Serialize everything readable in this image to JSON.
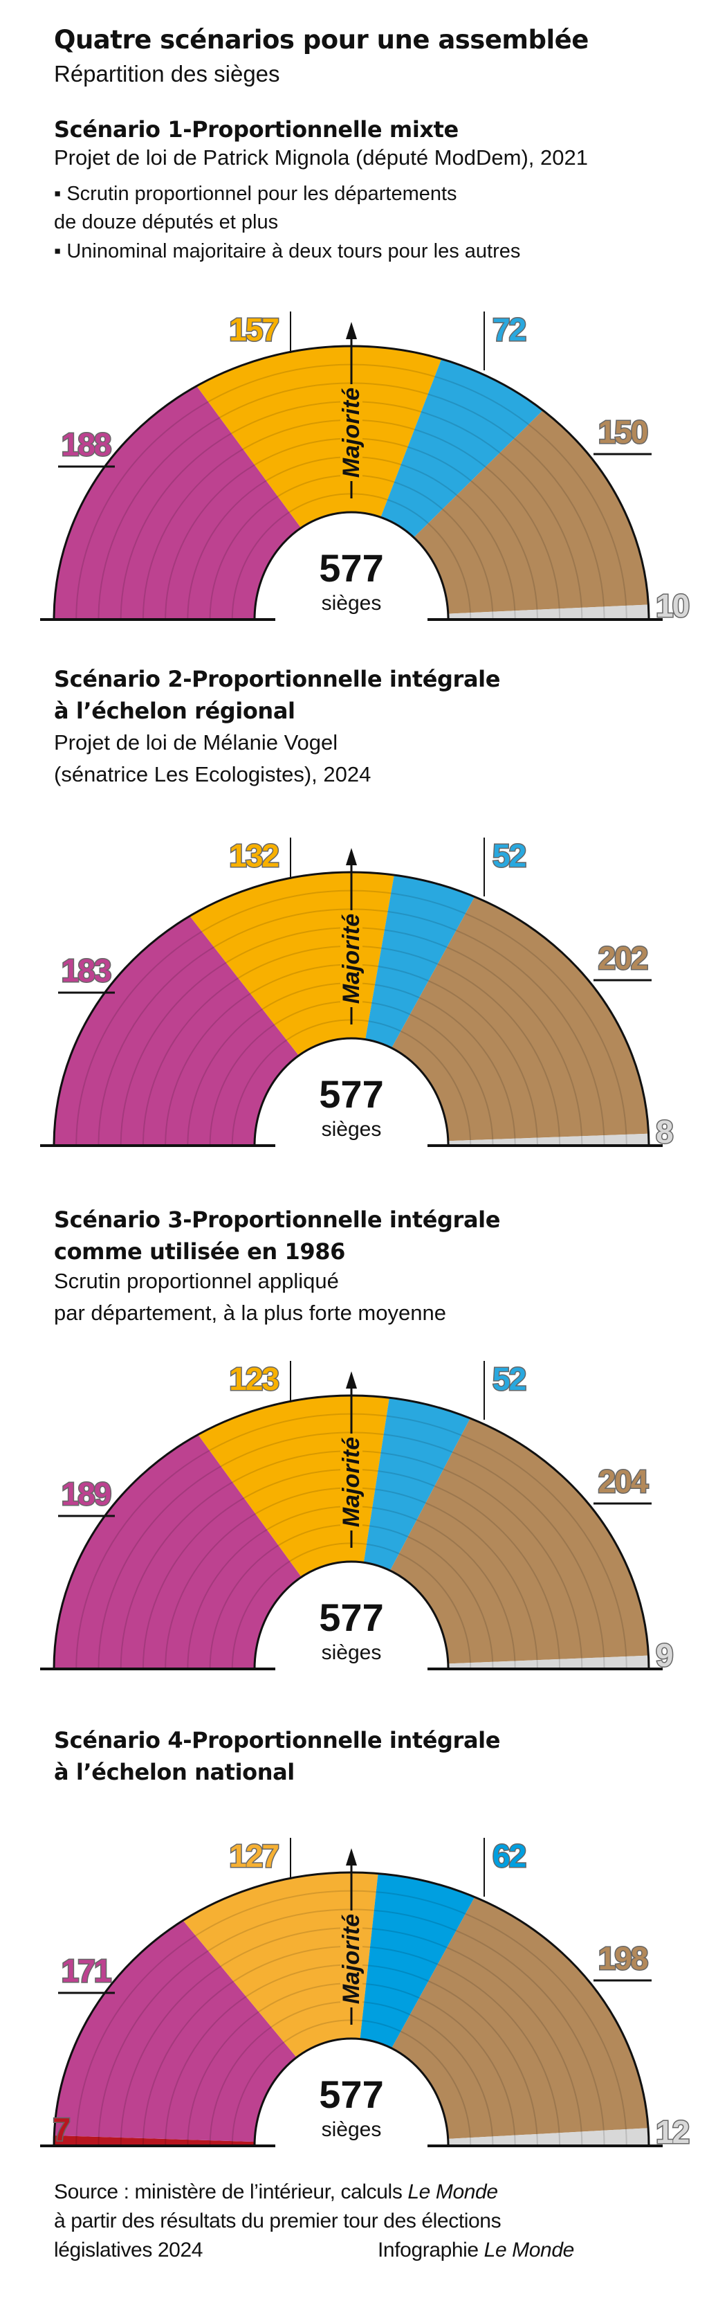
{
  "title": "Quatre scénarios pour une assemblée",
  "subtitle": "Répartition des sièges",
  "colors": {
    "purple": "#bd4290",
    "yellow": "#f8b000",
    "yellow_light": "#f6b033",
    "blue": "#29a8df",
    "blue_strong": "#009fe0",
    "brown": "#b3895a",
    "grey": "#d8d8d8",
    "red": "#b8161f"
  },
  "center_total": "577",
  "center_unit": "sièges",
  "majority_label": "Majorité",
  "scenarios": [
    {
      "heading": [
        "Scénario 1-Proportionnelle mixte"
      ],
      "description": [
        "Projet de loi de Patrick Mignola (député ModDem), 2021"
      ],
      "bullets": [
        "▪ Scrutin proportionnel pour les départements",
        "de douze députés et plus",
        "▪ Uninominal majoritaire à deux tours pour les autres"
      ]
    },
    {
      "heading": [
        "Scénario 2-Proportionnelle intégrale",
        "à l’échelon régional"
      ],
      "description": [
        "Projet de loi de Mélanie Vogel",
        "(sénatrice Les Ecologistes), 2024"
      ],
      "bullets": []
    },
    {
      "heading": [
        "Scénario 3-Proportionnelle intégrale",
        " comme utilisée en 1986"
      ],
      "description": [
        "Scrutin proportionnel appliqué",
        "par département, à la plus forte moyenne"
      ],
      "bullets": []
    },
    {
      "heading": [
        "Scénario 4-Proportionnelle intégrale",
        "à l’échelon national"
      ],
      "description": [],
      "bullets": []
    }
  ],
  "source": {
    "line1": "Source : ministère de l’intérieur, calculs",
    "line1_italic": "Le Monde",
    "line2": "à partir des résultats du premier tour des élections",
    "line3": "législatives 2024",
    "credit": "Infographie",
    "credit_italic": "Le Monde"
  },
  "chart_data": [
    {
      "type": "pie",
      "title": "Scénario 1-Proportionnelle mixte",
      "total": 577,
      "series": [
        {
          "name": "purple",
          "value": 188
        },
        {
          "name": "yellow",
          "value": 157
        },
        {
          "name": "blue",
          "value": 72
        },
        {
          "name": "brown",
          "value": 150
        },
        {
          "name": "grey",
          "value": 10
        }
      ]
    },
    {
      "type": "pie",
      "title": "Scénario 2-Proportionnelle intégrale à l’échelon régional",
      "total": 577,
      "series": [
        {
          "name": "purple",
          "value": 183
        },
        {
          "name": "yellow",
          "value": 132
        },
        {
          "name": "blue",
          "value": 52
        },
        {
          "name": "brown",
          "value": 202
        },
        {
          "name": "grey",
          "value": 8
        }
      ]
    },
    {
      "type": "pie",
      "title": "Scénario 3-Proportionnelle intégrale comme utilisée en 1986",
      "total": 577,
      "series": [
        {
          "name": "purple",
          "value": 189
        },
        {
          "name": "yellow",
          "value": 123
        },
        {
          "name": "blue",
          "value": 52
        },
        {
          "name": "brown",
          "value": 204
        },
        {
          "name": "grey",
          "value": 9
        }
      ]
    },
    {
      "type": "pie",
      "title": "Scénario 4-Proportionnelle intégrale à l’échelon national",
      "total": 577,
      "series": [
        {
          "name": "red",
          "value": 7
        },
        {
          "name": "purple",
          "value": 171
        },
        {
          "name": "yellow",
          "value": 127
        },
        {
          "name": "blue",
          "value": 62
        },
        {
          "name": "brown",
          "value": 198
        },
        {
          "name": "grey",
          "value": 12
        }
      ]
    }
  ]
}
